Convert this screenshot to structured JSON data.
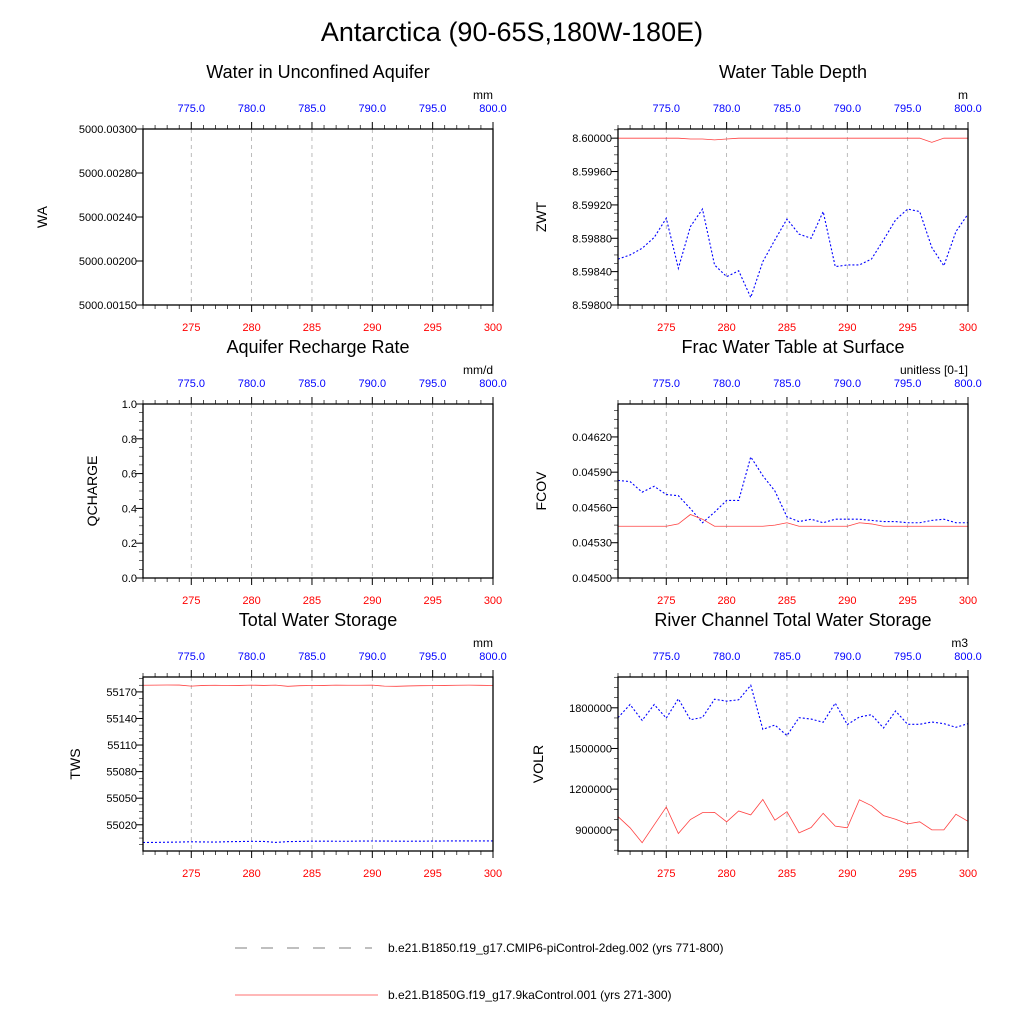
{
  "main_title": "Antarctica (90-65S,180W-180E)",
  "legend": [
    {
      "label": "b.e21.B1850.f19_g17.CMIP6-piControl-2deg.002 (yrs 771-800)",
      "color": "#0000ff",
      "style": "dashed"
    },
    {
      "label": "b.e21.B1850G.f19_g17.9kaControl.001 (yrs 271-300)",
      "color": "#ff0000",
      "style": "solid"
    }
  ],
  "chart_data": {
    "type": "line",
    "x": [
      271,
      272,
      273,
      274,
      275,
      276,
      277,
      278,
      279,
      280,
      281,
      282,
      283,
      284,
      285,
      286,
      287,
      288,
      289,
      290,
      291,
      292,
      293,
      294,
      295,
      296,
      297,
      298,
      299,
      300
    ],
    "xlim": [
      271,
      300
    ],
    "bottom_xticks": [
      275,
      280,
      285,
      290,
      295,
      300
    ],
    "bottom_xtick_labels": [
      "275",
      "280",
      "285",
      "290",
      "295",
      "300"
    ],
    "top_xtick_labels": [
      "775.0",
      "780.0",
      "785.0",
      "790.0",
      "795.0",
      "800.0"
    ],
    "panels": [
      {
        "title": "Water in Unconfined Aquifer",
        "ylabel": "WA",
        "units": "mm",
        "ylim": [
          5000.0015,
          5000.003
        ],
        "yticks": [
          5000.0015,
          5000.002,
          5000.0024,
          5000.0028,
          5000.003
        ],
        "ytick_labels": [
          "5000.00150",
          "5000.00200",
          "5000.00240",
          "5000.00280",
          "5000.00300"
        ],
        "ytick_positions_by_index": true,
        "series": []
      },
      {
        "title": "Water Table Depth",
        "ylabel": "ZWT",
        "units": "m",
        "ylim": [
          8.598,
          8.60011
        ],
        "yticks": [
          8.598,
          8.5984,
          8.5988,
          8.5992,
          8.5996,
          8.6
        ],
        "ytick_labels": [
          "8.59800",
          "8.59840",
          "8.59880",
          "8.59920",
          "8.59960",
          "8.60000"
        ],
        "series": [
          {
            "name": "piControl-2deg.002",
            "color": "#0000ff",
            "style": "dashed",
            "values": [
              8.59855,
              8.5986,
              8.59868,
              8.59881,
              8.59904,
              8.59844,
              8.59894,
              8.59915,
              8.59848,
              8.59834,
              8.59841,
              8.59809,
              8.59852,
              8.59878,
              8.59903,
              8.59885,
              8.5988,
              8.59912,
              8.59846,
              8.59848,
              8.59848,
              8.59855,
              8.59878,
              8.59902,
              8.59915,
              8.59912,
              8.59869,
              8.59847,
              8.59888,
              8.59909
            ]
          },
          {
            "name": "9kaControl.001",
            "color": "#ff0000",
            "style": "solid",
            "values": [
              8.6,
              8.6,
              8.6,
              8.6,
              8.6,
              8.6,
              8.59999,
              8.59999,
              8.59998,
              8.59999,
              8.6,
              8.6,
              8.6,
              8.6,
              8.6,
              8.6,
              8.6,
              8.6,
              8.6,
              8.6,
              8.6,
              8.6,
              8.6,
              8.6,
              8.6,
              8.6,
              8.59995,
              8.6,
              8.6,
              8.6
            ]
          }
        ]
      },
      {
        "title": "Aquifer Recharge Rate",
        "ylabel": "QCHARGE",
        "units": "mm/d",
        "ylim": [
          0,
          1
        ],
        "yticks": [
          0,
          0.2,
          0.4,
          0.6,
          0.8,
          1.0
        ],
        "ytick_labels": [
          "0.0",
          "0.2",
          "0.4",
          "0.6",
          "0.8",
          "1.0"
        ],
        "series": []
      },
      {
        "title": "Frac Water Table at Surface",
        "ylabel": "FCOV",
        "units": "unitless [0-1]",
        "ylim": [
          0.045,
          0.04648
        ],
        "yticks": [
          0.045,
          0.0453,
          0.0456,
          0.0459,
          0.0462
        ],
        "ytick_labels": [
          "0.04500",
          "0.04530",
          "0.04560",
          "0.04590",
          "0.04620"
        ],
        "series": [
          {
            "name": "piControl-2deg.002",
            "color": "#0000ff",
            "style": "dashed",
            "values": [
              0.04583,
              0.04582,
              0.04573,
              0.04578,
              0.04571,
              0.0457,
              0.04559,
              0.04547,
              0.04556,
              0.04566,
              0.04566,
              0.04603,
              0.04587,
              0.04574,
              0.04552,
              0.04548,
              0.0455,
              0.04547,
              0.0455,
              0.0455,
              0.0455,
              0.04549,
              0.04548,
              0.04548,
              0.04547,
              0.04547,
              0.04549,
              0.0455,
              0.04547,
              0.04547
            ]
          },
          {
            "name": "9kaControl.001",
            "color": "#ff0000",
            "style": "solid",
            "values": [
              0.04544,
              0.04544,
              0.04544,
              0.04544,
              0.04544,
              0.04546,
              0.04554,
              0.0455,
              0.04544,
              0.04544,
              0.04544,
              0.04544,
              0.04544,
              0.04545,
              0.04547,
              0.04544,
              0.04544,
              0.04544,
              0.04544,
              0.04544,
              0.04547,
              0.04546,
              0.04544,
              0.04544,
              0.04544,
              0.04544,
              0.04544,
              0.04544,
              0.04544,
              0.04544
            ]
          }
        ]
      },
      {
        "title": "Total Water Storage",
        "ylabel": "TWS",
        "units": "mm",
        "ylim": [
          54990.4,
          55186.8
        ],
        "yticks": [
          55020,
          55050,
          55080,
          55110,
          55140,
          55170
        ],
        "ytick_labels": [
          "55020",
          "55050",
          "55080",
          "55110",
          "55140",
          "55170"
        ],
        "series": [
          {
            "name": "piControl-2deg.002",
            "color": "#0000ff",
            "style": "dashed",
            "values": [
              55000,
              55000.1,
              55000.3,
              55000.5,
              55000.8,
              55000.6,
              55000.5,
              55000.9,
              55001.1,
              55001.3,
              55001.2,
              55000.1,
              55001.0,
              55001.2,
              55001.5,
              55001.5,
              55001.4,
              55001.4,
              55001.6,
              55001.7,
              55001.6,
              55001.5,
              55001.4,
              55001.5,
              55001.6,
              55001.7,
              55001.8,
              55001.8,
              55001.8,
              55001.8
            ]
          },
          {
            "name": "9kaControl.001",
            "color": "#ff0000",
            "style": "solid",
            "values": [
              55177.5,
              55177.6,
              55177.8,
              55177.7,
              55176.5,
              55177.3,
              55177.5,
              55177.2,
              55177.3,
              55177.6,
              55177.3,
              55177.6,
              55176.3,
              55177.0,
              55177.2,
              55177.3,
              55177.6,
              55177.5,
              55177.5,
              55177.6,
              55176.5,
              55176.3,
              55176.7,
              55177.0,
              55177.1,
              55177.3,
              55177.5,
              55177.6,
              55177.4,
              55177.2
            ]
          }
        ]
      },
      {
        "title": "River Channel Total Water Storage",
        "ylabel": "VOLR",
        "units": "m3",
        "ylim": [
          744000,
          2027000
        ],
        "yticks": [
          900000,
          1200000,
          1500000,
          1800000
        ],
        "ytick_labels": [
          "900000",
          "1200000",
          "1500000",
          "1800000"
        ],
        "series": [
          {
            "name": "piControl-2deg.002",
            "color": "#0000ff",
            "style": "dashed",
            "values": [
              1727000,
              1824000,
              1707000,
              1824000,
              1724000,
              1866000,
              1712000,
              1729000,
              1863000,
              1849000,
              1859000,
              1966000,
              1641000,
              1673000,
              1595000,
              1727000,
              1717000,
              1693000,
              1834000,
              1676000,
              1732000,
              1749000,
              1651000,
              1776000,
              1678000,
              1678000,
              1695000,
              1683000,
              1656000,
              1683000
            ]
          },
          {
            "name": "9kaControl.001",
            "color": "#ff0000",
            "style": "solid",
            "values": [
              998000,
              915000,
              805000,
              937000,
              1068000,
              873000,
              976000,
              1027000,
              1029000,
              959000,
              1039000,
              1010000,
              1124000,
              971000,
              1034000,
              878000,
              917000,
              1022000,
              927000,
              915000,
              1122000,
              1078000,
              1005000,
              978000,
              944000,
              959000,
              900000,
              900000,
              1015000,
              963000
            ]
          }
        ]
      }
    ]
  }
}
